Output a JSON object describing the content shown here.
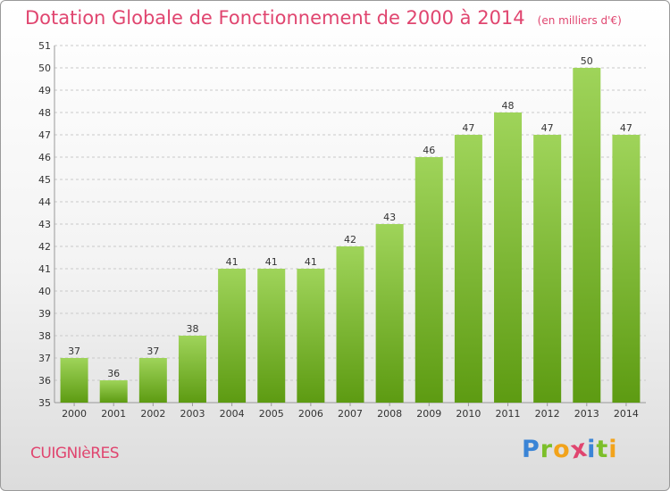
{
  "header": {
    "title": "Dotation Globale de Fonctionnement de 2000 à 2014",
    "unit": "(en milliers d'€)"
  },
  "footer": {
    "commune": "CUIGNIèRES",
    "logo_letters": [
      "P",
      "r",
      "o",
      "x",
      "i",
      "t",
      "i"
    ],
    "logo_colors": [
      "#3a84d6",
      "#7cbf2a",
      "#f2a31b",
      "#e0456f",
      "#3a84d6",
      "#7cbf2a",
      "#f2a31b"
    ]
  },
  "colors": {
    "bar_top": "#9fd45a",
    "bar_bottom": "#5d9b12",
    "text": "#333333",
    "grid": "#c9c9c9"
  },
  "chart_data": {
    "type": "bar",
    "categories": [
      "2000",
      "2001",
      "2002",
      "2003",
      "2004",
      "2005",
      "2006",
      "2007",
      "2008",
      "2009",
      "2010",
      "2011",
      "2012",
      "2013",
      "2014"
    ],
    "values": [
      37,
      36,
      37,
      38,
      41,
      41,
      41,
      42,
      43,
      46,
      47,
      48,
      47,
      50,
      47
    ],
    "title": "Dotation Globale de Fonctionnement de 2000 à 2014",
    "subtitle": "(en milliers d'€)",
    "xlabel": "",
    "ylabel": "",
    "ylim": [
      35,
      51
    ],
    "yticks": [
      35,
      36,
      37,
      38,
      39,
      40,
      41,
      42,
      43,
      44,
      45,
      46,
      47,
      48,
      49,
      50,
      51
    ],
    "grid": true,
    "data_labels": true
  }
}
